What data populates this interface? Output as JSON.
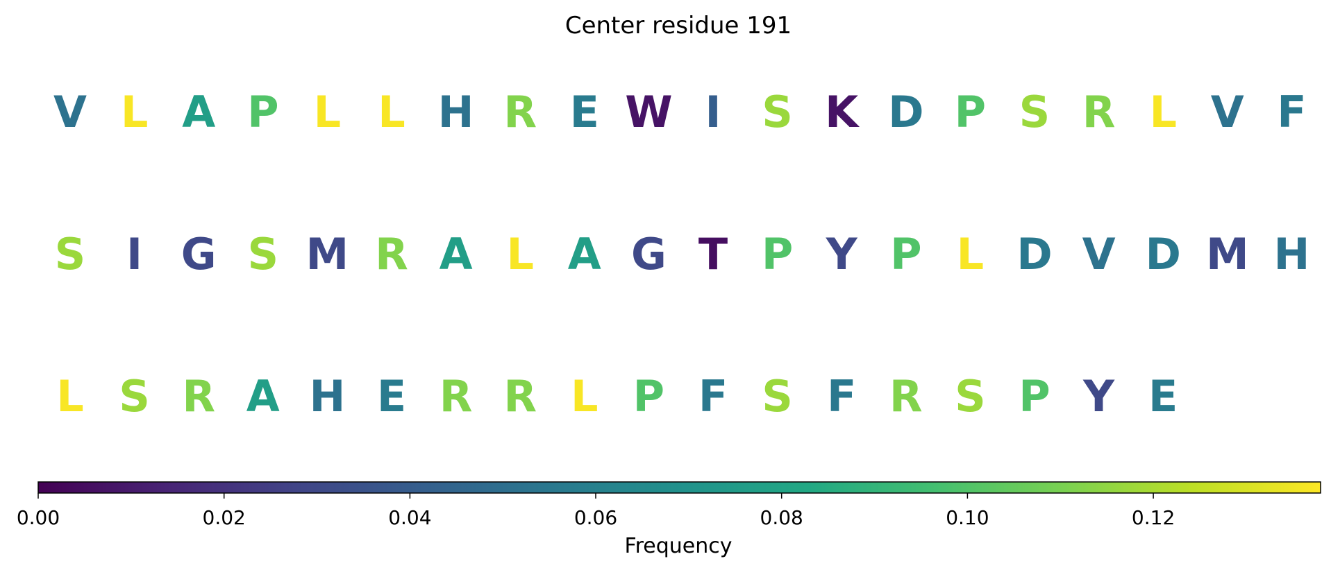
{
  "chart_data": {
    "type": "heatmap",
    "title": "Center residue 191",
    "colormap": "viridis",
    "rows": [
      {
        "residues": [
          "V",
          "L",
          "A",
          "P",
          "L",
          "L",
          "H",
          "R",
          "E",
          "W",
          "I",
          "S",
          "K",
          "D",
          "P",
          "S",
          "R",
          "L",
          "V",
          "F"
        ],
        "frequencies": [
          0.052,
          0.137,
          0.077,
          0.1,
          0.137,
          0.137,
          0.052,
          0.112,
          0.057,
          0.007,
          0.041,
          0.117,
          0.007,
          0.055,
          0.1,
          0.117,
          0.112,
          0.137,
          0.052,
          0.055
        ]
      },
      {
        "residues": [
          "S",
          "I",
          "G",
          "S",
          "M",
          "R",
          "A",
          "L",
          "A",
          "G",
          "T",
          "P",
          "Y",
          "P",
          "L",
          "D",
          "V",
          "D",
          "M",
          "H"
        ],
        "frequencies": [
          0.117,
          0.03,
          0.03,
          0.117,
          0.03,
          0.112,
          0.077,
          0.137,
          0.077,
          0.03,
          0.005,
          0.1,
          0.03,
          0.1,
          0.137,
          0.055,
          0.052,
          0.055,
          0.03,
          0.052
        ]
      },
      {
        "residues": [
          "L",
          "S",
          "R",
          "A",
          "H",
          "E",
          "R",
          "R",
          "L",
          "P",
          "F",
          "S",
          "F",
          "R",
          "S",
          "P",
          "Y",
          "E"
        ],
        "frequencies": [
          0.137,
          0.117,
          0.112,
          0.077,
          0.052,
          0.057,
          0.112,
          0.112,
          0.137,
          0.1,
          0.055,
          0.117,
          0.055,
          0.112,
          0.117,
          0.1,
          0.03,
          0.057
        ]
      }
    ],
    "colorbar": {
      "label": "Frequency",
      "range": [
        0,
        0.138
      ],
      "ticks": [
        0.0,
        0.02,
        0.04,
        0.06,
        0.08,
        0.1,
        0.12
      ],
      "tick_labels": [
        "0.00",
        "0.02",
        "0.04",
        "0.06",
        "0.08",
        "0.10",
        "0.12"
      ],
      "orientation": "horizontal",
      "position": "bottom"
    }
  }
}
